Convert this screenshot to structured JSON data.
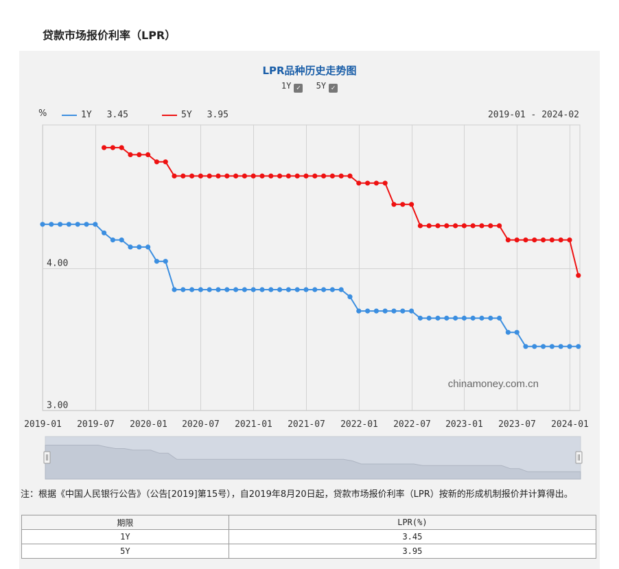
{
  "page": {
    "title": "贷款市场报价利率（LPR）"
  },
  "chart_header": {
    "title": "LPR品种历史走势图",
    "toggles": [
      {
        "label": "1Y",
        "checked": true
      },
      {
        "label": "5Y",
        "checked": true
      }
    ],
    "check_glyph": "✓",
    "unit": "%",
    "date_range": "2019-01 - 2024-02",
    "watermark": "chinamoney.com.cn"
  },
  "colors": {
    "series_1y": "#3b8ee0",
    "series_5y": "#ee1111",
    "plot_bg": "#f2f2f2",
    "grid": "#d2d2d2",
    "navigator": "#d3d9e3"
  },
  "chart_data": {
    "type": "line",
    "xlabel": "",
    "ylabel": "%",
    "ylim": [
      3.0,
      4.85
    ],
    "yticks": [
      3.0,
      4.0
    ],
    "ytick_labels": [
      "3.00",
      "4.00"
    ],
    "xlim": [
      "2019-01",
      "2024-02"
    ],
    "xtick_labels": [
      "2019-01",
      "2019-07",
      "2020-01",
      "2020-07",
      "2021-01",
      "2021-07",
      "2022-01",
      "2022-07",
      "2023-01",
      "2023-07",
      "2024-01"
    ],
    "grid": true,
    "legend_position": "top-left",
    "series": [
      {
        "name": "1Y",
        "latest": "3.45",
        "dates": [
          "2019-01",
          "2019-02",
          "2019-03",
          "2019-04",
          "2019-05",
          "2019-06",
          "2019-07",
          "2019-08",
          "2019-09",
          "2019-10",
          "2019-11",
          "2019-12",
          "2020-01",
          "2020-02",
          "2020-03",
          "2020-04",
          "2020-05",
          "2020-06",
          "2020-07",
          "2020-08",
          "2020-09",
          "2020-10",
          "2020-11",
          "2020-12",
          "2021-01",
          "2021-02",
          "2021-03",
          "2021-04",
          "2021-05",
          "2021-06",
          "2021-07",
          "2021-08",
          "2021-09",
          "2021-10",
          "2021-11",
          "2021-12",
          "2022-01",
          "2022-02",
          "2022-03",
          "2022-04",
          "2022-05",
          "2022-06",
          "2022-07",
          "2022-08",
          "2022-09",
          "2022-10",
          "2022-11",
          "2022-12",
          "2023-01",
          "2023-02",
          "2023-03",
          "2023-04",
          "2023-05",
          "2023-06",
          "2023-07",
          "2023-08",
          "2023-09",
          "2023-10",
          "2023-11",
          "2023-12",
          "2024-01",
          "2024-02"
        ],
        "values": [
          4.31,
          4.31,
          4.31,
          4.31,
          4.31,
          4.31,
          4.31,
          4.25,
          4.2,
          4.2,
          4.15,
          4.15,
          4.15,
          4.05,
          4.05,
          3.85,
          3.85,
          3.85,
          3.85,
          3.85,
          3.85,
          3.85,
          3.85,
          3.85,
          3.85,
          3.85,
          3.85,
          3.85,
          3.85,
          3.85,
          3.85,
          3.85,
          3.85,
          3.85,
          3.85,
          3.8,
          3.7,
          3.7,
          3.7,
          3.7,
          3.7,
          3.7,
          3.7,
          3.65,
          3.65,
          3.65,
          3.65,
          3.65,
          3.65,
          3.65,
          3.65,
          3.65,
          3.65,
          3.55,
          3.55,
          3.45,
          3.45,
          3.45,
          3.45,
          3.45,
          3.45,
          3.45
        ]
      },
      {
        "name": "5Y",
        "latest": "3.95",
        "dates": [
          "2019-08",
          "2019-09",
          "2019-10",
          "2019-11",
          "2019-12",
          "2020-01",
          "2020-02",
          "2020-03",
          "2020-04",
          "2020-05",
          "2020-06",
          "2020-07",
          "2020-08",
          "2020-09",
          "2020-10",
          "2020-11",
          "2020-12",
          "2021-01",
          "2021-02",
          "2021-03",
          "2021-04",
          "2021-05",
          "2021-06",
          "2021-07",
          "2021-08",
          "2021-09",
          "2021-10",
          "2021-11",
          "2021-12",
          "2022-01",
          "2022-02",
          "2022-03",
          "2022-04",
          "2022-05",
          "2022-06",
          "2022-07",
          "2022-08",
          "2022-09",
          "2022-10",
          "2022-11",
          "2022-12",
          "2023-01",
          "2023-02",
          "2023-03",
          "2023-04",
          "2023-05",
          "2023-06",
          "2023-07",
          "2023-08",
          "2023-09",
          "2023-10",
          "2023-11",
          "2023-12",
          "2024-01",
          "2024-02"
        ],
        "values": [
          4.85,
          4.85,
          4.85,
          4.8,
          4.8,
          4.8,
          4.75,
          4.75,
          4.65,
          4.65,
          4.65,
          4.65,
          4.65,
          4.65,
          4.65,
          4.65,
          4.65,
          4.65,
          4.65,
          4.65,
          4.65,
          4.65,
          4.65,
          4.65,
          4.65,
          4.65,
          4.65,
          4.65,
          4.65,
          4.6,
          4.6,
          4.6,
          4.6,
          4.45,
          4.45,
          4.45,
          4.3,
          4.3,
          4.3,
          4.3,
          4.3,
          4.3,
          4.3,
          4.3,
          4.3,
          4.3,
          4.2,
          4.2,
          4.2,
          4.2,
          4.2,
          4.2,
          4.2,
          4.2,
          3.95
        ]
      }
    ]
  },
  "footnote": "注：根据《中国人民银行公告》（公告[2019]第15号），自2019年8月20日起，贷款市场报价利率（LPR）按新的形成机制报价并计算得出。",
  "table": {
    "headers": [
      "期限",
      "LPR(%)"
    ],
    "rows": [
      [
        "1Y",
        "3.45"
      ],
      [
        "5Y",
        "3.95"
      ]
    ]
  }
}
